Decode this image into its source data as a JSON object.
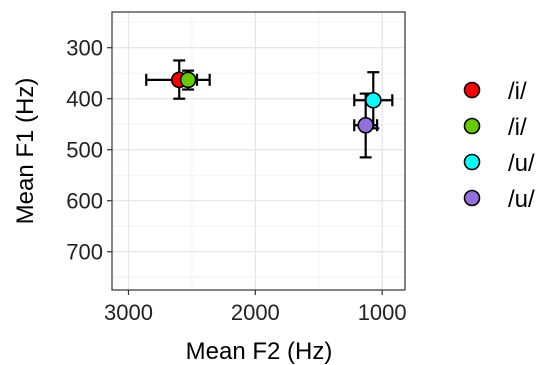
{
  "chart_data": {
    "type": "scatter",
    "xlabel": "Mean F2 (Hz)",
    "ylabel": "Mean F1 (Hz)",
    "x_reversed": true,
    "y_reversed": true,
    "xlim": [
      3130,
      820
    ],
    "ylim": [
      230,
      775
    ],
    "x_ticks": [
      3000,
      2000,
      1000
    ],
    "y_ticks": [
      300,
      400,
      500,
      600,
      700
    ],
    "x_tick_labels": [
      "3000",
      "2000",
      "1000"
    ],
    "y_tick_labels": [
      "300",
      "400",
      "500",
      "600",
      "700"
    ],
    "grid": true,
    "legend_position": "right",
    "series": [
      {
        "name": "/i/",
        "color": "#ff0000",
        "x": 2600,
        "y": 363,
        "x_err": [
          2860,
          2360
        ],
        "y_err": [
          325,
          400
        ]
      },
      {
        "name": "/i/",
        "color": "#66cc00",
        "x": 2530,
        "y": 363,
        "x_err": [
          2610,
          2460
        ],
        "y_err": [
          345,
          382
        ]
      },
      {
        "name": "/u/",
        "color": "#00ffff",
        "x": 1070,
        "y": 403,
        "x_err": [
          1220,
          920
        ],
        "y_err": [
          348,
          458
        ]
      },
      {
        "name": "/u/",
        "color": "#9370db",
        "x": 1130,
        "y": 452,
        "x_err": [
          1220,
          1040
        ],
        "y_err": [
          390,
          515
        ]
      }
    ]
  }
}
